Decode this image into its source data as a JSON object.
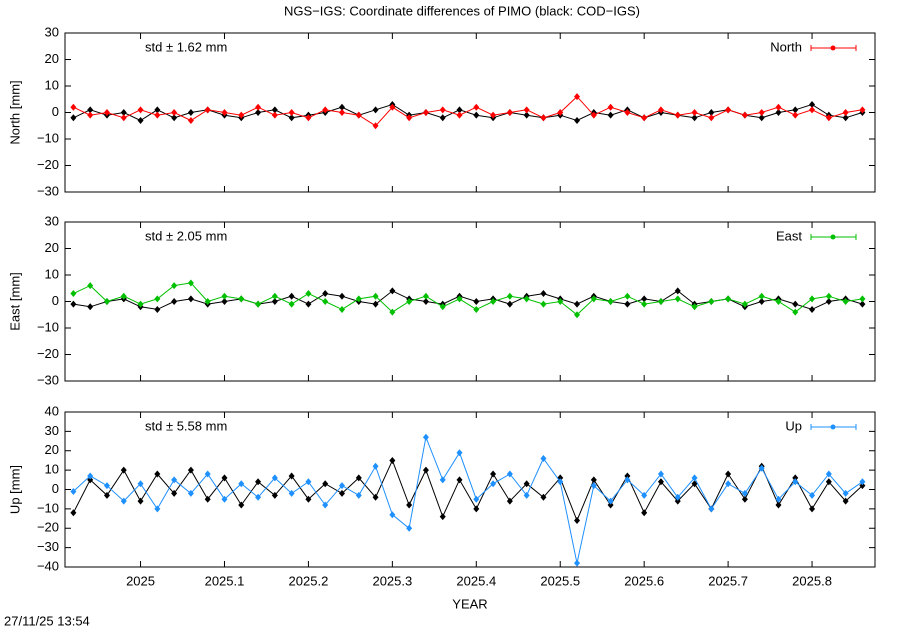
{
  "title": "NGS−IGS: Coordinate differences of PIMO (black: COD−IGS)",
  "footer": "27/11/25 13:54",
  "chart_data": [
    {
      "type": "line",
      "ylabel": "North [mm]",
      "annotation": "std ± 1.62 mm",
      "legend": "top-right",
      "x": [
        2024.92,
        2024.94,
        2024.96,
        2024.98,
        2025.0,
        2025.02,
        2025.04,
        2025.06,
        2025.08,
        2025.1,
        2025.12,
        2025.14,
        2025.16,
        2025.18,
        2025.2,
        2025.22,
        2025.24,
        2025.26,
        2025.28,
        2025.3,
        2025.32,
        2025.34,
        2025.36,
        2025.38,
        2025.4,
        2025.42,
        2025.44,
        2025.46,
        2025.48,
        2025.5,
        2025.52,
        2025.54,
        2025.56,
        2025.58,
        2025.6,
        2025.62,
        2025.64,
        2025.66,
        2025.68,
        2025.7,
        2025.72,
        2025.74,
        2025.76,
        2025.78,
        2025.8,
        2025.82,
        2025.84,
        2025.86
      ],
      "xlim": [
        2024.91,
        2025.875
      ],
      "xticks": [
        2025,
        2025.1,
        2025.2,
        2025.3,
        2025.4,
        2025.5,
        2025.6,
        2025.7,
        2025.8
      ],
      "ylim": [
        -30,
        30
      ],
      "yticks": [
        {
          "value": -30,
          "label": "−30"
        },
        {
          "value": -20,
          "label": "−20"
        },
        {
          "value": -10,
          "label": "−10"
        },
        0,
        10,
        20,
        30
      ],
      "series": [
        {
          "color": "#000000",
          "values": [
            -2,
            1,
            -1,
            0,
            -3,
            1,
            -2,
            0,
            1,
            -1,
            -2,
            0,
            1,
            -2,
            -1,
            0,
            2,
            -1,
            1,
            3,
            -1,
            0,
            -2,
            1,
            -1,
            -2,
            0,
            -1,
            -2,
            -1,
            -3,
            0,
            -1,
            1,
            -2,
            0,
            -1,
            -2,
            0,
            1,
            -1,
            -2,
            0,
            1,
            3,
            -1,
            -2,
            0
          ]
        },
        {
          "name": "North",
          "color": "#ff0000",
          "values": [
            2,
            -1,
            0,
            -2,
            1,
            -1,
            0,
            -3,
            1,
            0,
            -1,
            2,
            -1,
            0,
            -2,
            1,
            0,
            -1,
            -5,
            2,
            -2,
            0,
            1,
            -1,
            2,
            -1,
            0,
            1,
            -2,
            0,
            6,
            -1,
            2,
            0,
            -2,
            1,
            -1,
            0,
            -2,
            1,
            -1,
            0,
            2,
            -1,
            1,
            -2,
            0,
            1
          ]
        }
      ]
    },
    {
      "type": "line",
      "ylabel": "East [mm]",
      "annotation": "std ± 2.05 mm",
      "legend": "top-right",
      "x": [
        2024.92,
        2024.94,
        2024.96,
        2024.98,
        2025.0,
        2025.02,
        2025.04,
        2025.06,
        2025.08,
        2025.1,
        2025.12,
        2025.14,
        2025.16,
        2025.18,
        2025.2,
        2025.22,
        2025.24,
        2025.26,
        2025.28,
        2025.3,
        2025.32,
        2025.34,
        2025.36,
        2025.38,
        2025.4,
        2025.42,
        2025.44,
        2025.46,
        2025.48,
        2025.5,
        2025.52,
        2025.54,
        2025.56,
        2025.58,
        2025.6,
        2025.62,
        2025.64,
        2025.66,
        2025.68,
        2025.7,
        2025.72,
        2025.74,
        2025.76,
        2025.78,
        2025.8,
        2025.82,
        2025.84,
        2025.86
      ],
      "xlim": [
        2024.91,
        2025.875
      ],
      "xticks": [
        2025,
        2025.1,
        2025.2,
        2025.3,
        2025.4,
        2025.5,
        2025.6,
        2025.7,
        2025.8
      ],
      "ylim": [
        -30,
        30
      ],
      "yticks": [
        {
          "value": -30,
          "label": "−30"
        },
        {
          "value": -20,
          "label": "−20"
        },
        {
          "value": -10,
          "label": "−10"
        },
        0,
        10,
        20,
        30
      ],
      "series": [
        {
          "color": "#000000",
          "values": [
            -1,
            -2,
            0,
            1,
            -2,
            -3,
            0,
            1,
            -1,
            0,
            1,
            -1,
            0,
            2,
            -1,
            3,
            2,
            0,
            -1,
            4,
            1,
            0,
            -1,
            2,
            0,
            1,
            -1,
            2,
            3,
            1,
            -1,
            2,
            0,
            -1,
            1,
            0,
            4,
            -1,
            0,
            1,
            -2,
            0,
            1,
            -1,
            -3,
            0,
            1,
            -1
          ]
        },
        {
          "name": "East",
          "color": "#00c000",
          "values": [
            3,
            6,
            0,
            2,
            -1,
            1,
            6,
            7,
            0,
            2,
            1,
            -1,
            2,
            -1,
            3,
            0,
            -3,
            1,
            2,
            -4,
            0,
            2,
            -2,
            1,
            -3,
            0,
            2,
            1,
            -1,
            0,
            -5,
            1,
            0,
            2,
            -1,
            0,
            1,
            -2,
            0,
            1,
            -1,
            2,
            0,
            -4,
            1,
            2,
            0,
            1
          ]
        }
      ]
    },
    {
      "type": "line",
      "ylabel": "Up [mm]",
      "xlabel": "YEAR",
      "annotation": "std ± 5.58 mm",
      "legend": "top-right",
      "x": [
        2024.92,
        2024.94,
        2024.96,
        2024.98,
        2025.0,
        2025.02,
        2025.04,
        2025.06,
        2025.08,
        2025.1,
        2025.12,
        2025.14,
        2025.16,
        2025.18,
        2025.2,
        2025.22,
        2025.24,
        2025.26,
        2025.28,
        2025.3,
        2025.32,
        2025.34,
        2025.36,
        2025.38,
        2025.4,
        2025.42,
        2025.44,
        2025.46,
        2025.48,
        2025.5,
        2025.52,
        2025.54,
        2025.56,
        2025.58,
        2025.6,
        2025.62,
        2025.64,
        2025.66,
        2025.68,
        2025.7,
        2025.72,
        2025.74,
        2025.76,
        2025.78,
        2025.8,
        2025.82,
        2025.84,
        2025.86
      ],
      "xlim": [
        2024.91,
        2025.875
      ],
      "xticks": [
        2025,
        2025.1,
        2025.2,
        2025.3,
        2025.4,
        2025.5,
        2025.6,
        2025.7,
        2025.8
      ],
      "ylim": [
        -40,
        40
      ],
      "yticks": [
        {
          "value": -40,
          "label": "−40"
        },
        {
          "value": -30,
          "label": "−30"
        },
        {
          "value": -20,
          "label": "−20"
        },
        {
          "value": -10,
          "label": "−10"
        },
        0,
        10,
        20,
        30,
        40
      ],
      "series": [
        {
          "color": "#000000",
          "values": [
            -12,
            5,
            -3,
            10,
            -6,
            8,
            -2,
            10,
            -5,
            6,
            -8,
            4,
            -3,
            7,
            -5,
            3,
            -2,
            6,
            -4,
            15,
            -8,
            10,
            -14,
            5,
            -10,
            8,
            -6,
            3,
            -4,
            6,
            -16,
            5,
            -8,
            7,
            -12,
            4,
            -6,
            3,
            -10,
            8,
            -5,
            12,
            -8,
            6,
            -10,
            4,
            -6,
            2
          ]
        },
        {
          "name": "Up",
          "color": "#1e90ff",
          "values": [
            -1,
            7,
            2,
            -6,
            3,
            -10,
            5,
            -2,
            8,
            -5,
            3,
            -4,
            6,
            -2,
            4,
            -8,
            2,
            -3,
            12,
            -13,
            -20,
            27,
            5,
            19,
            -5,
            3,
            8,
            -3,
            16,
            4,
            -38,
            2,
            -6,
            5,
            -3,
            8,
            -4,
            6,
            -10,
            3,
            -2,
            11,
            -5,
            4,
            -3,
            8,
            -2,
            4
          ]
        }
      ]
    }
  ]
}
